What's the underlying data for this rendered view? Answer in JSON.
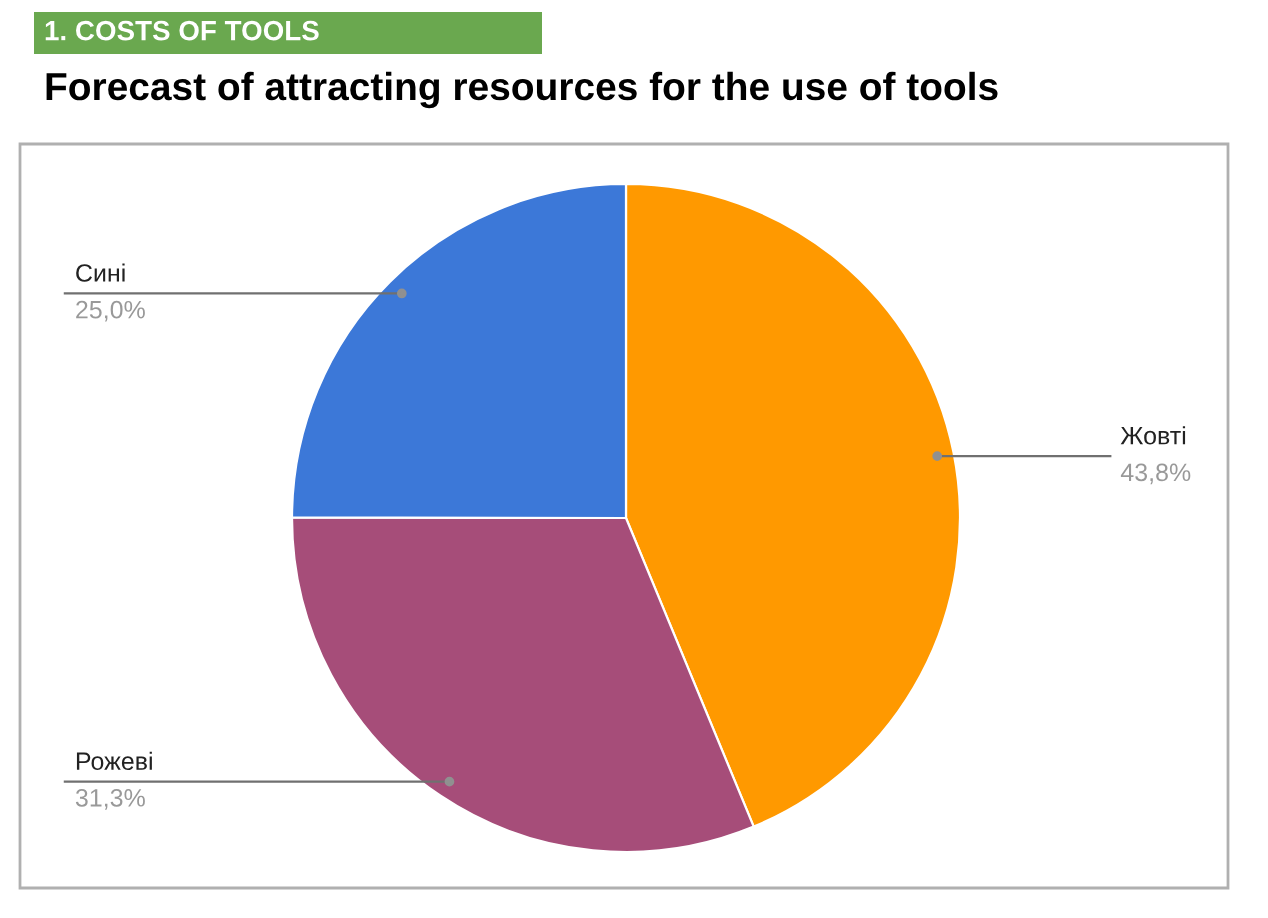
{
  "chart_data": {
    "type": "pie",
    "title": "1. COSTS OF TOOLS",
    "subtitle": "Forecast of attracting resources for the use of tools",
    "categories": [
      "Жовті",
      "Рожеві",
      "Сині"
    ],
    "values": [
      43.8,
      31.3,
      25.0
    ],
    "value_labels": [
      "43,8%",
      "31,3%",
      "25,0%"
    ],
    "colors": [
      "#ff9900",
      "#a64d79",
      "#3c78d8"
    ],
    "legend": false
  }
}
